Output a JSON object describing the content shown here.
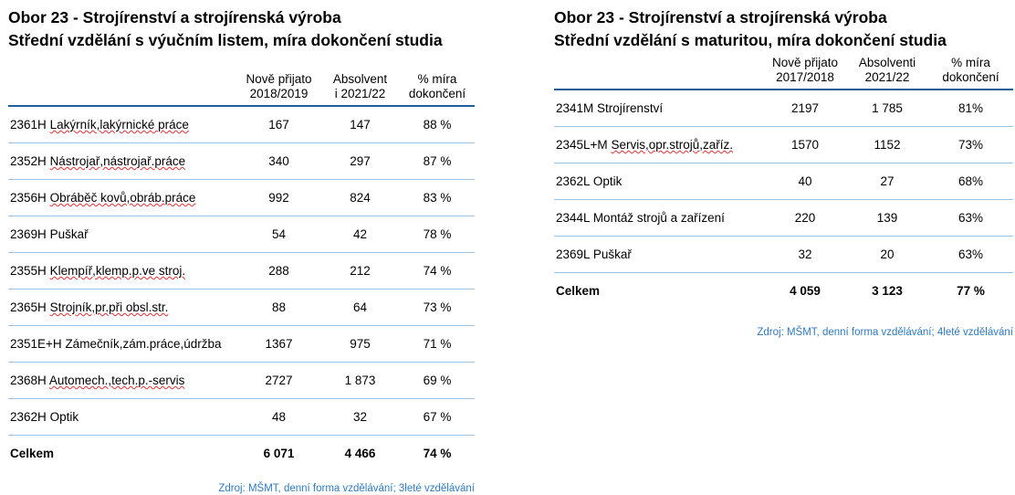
{
  "left": {
    "title1": "Obor 23 - Strojírenství a strojírenská výroba",
    "title2": "Střední vzdělání s výučním listem, míra dokončení studia",
    "headers": {
      "admitted_l1": "Nově přijato",
      "admitted_l2": "2018/2019",
      "graduates_l1": "Absolvent",
      "graduates_l2": "i 2021/22",
      "rate_l1": "% míra",
      "rate_l2": "dokončení"
    },
    "rows": [
      {
        "code": "2361H",
        "name": "Lakýrník,lakýrnické práce",
        "admitted": "167",
        "graduates": "147",
        "rate": "88 %"
      },
      {
        "code": "2352H",
        "name": "Nástrojař,nástrojař.práce",
        "admitted": "340",
        "graduates": "297",
        "rate": "87 %"
      },
      {
        "code": "2356H",
        "name": "Obráběč kovů,obráb.práce",
        "admitted": "992",
        "graduates": "824",
        "rate": "83 %"
      },
      {
        "code": "2369H",
        "name": "Puškař",
        "admitted": "54",
        "graduates": "42",
        "rate": "78 %"
      },
      {
        "code": "2355H",
        "name": "Klempíř,klemp.p.ve stroj.",
        "admitted": "288",
        "graduates": "212",
        "rate": "74 %"
      },
      {
        "code": "2365H",
        "name": "Strojník,pr.při obsl.str.",
        "admitted": "88",
        "graduates": "64",
        "rate": "73 %"
      },
      {
        "code": "2351E+H",
        "name": "Zámečník,zám.práce,údržba",
        "admitted": "1367",
        "graduates": "975",
        "rate": "71 %"
      },
      {
        "code": "2368H",
        "name": "Automech.,tech.p.-servis",
        "admitted": "2727",
        "graduates": "1 873",
        "rate": "69 %"
      },
      {
        "code": "2362H",
        "name": "Optik",
        "admitted": "48",
        "graduates": "32",
        "rate": "67 %"
      }
    ],
    "total": {
      "label": "Celkem",
      "admitted": "6 071",
      "graduates": "4 466",
      "rate": "74 %"
    },
    "source": "Zdroj: MŠMT, denní forma vzdělávání; 3leté vzdělávání"
  },
  "right": {
    "title1": "Obor 23 - Strojírenství a strojírenská výroba",
    "title2": "Střední vzdělání s maturitou, míra dokončení studia",
    "headers": {
      "admitted_l1": "Nově přijato",
      "admitted_l2": "2017/2018",
      "graduates_l1": "Absolventi",
      "graduates_l2": "2021/22",
      "rate_l1": "% míra",
      "rate_l2": "dokončení"
    },
    "rows": [
      {
        "code": "2341M",
        "name": "Strojírenství",
        "admitted": "2197",
        "graduates": "1 785",
        "rate": "81%"
      },
      {
        "code": "2345L+M",
        "name": "Servis,opr.strojů,zaříz.",
        "admitted": "1570",
        "graduates": "1152",
        "rate": "73%"
      },
      {
        "code": "2362L",
        "name": "Optik",
        "admitted": "40",
        "graduates": "27",
        "rate": "68%"
      },
      {
        "code": "2344L",
        "name": "Montáž strojů a zařízení",
        "admitted": "220",
        "graduates": "139",
        "rate": "63%"
      },
      {
        "code": "2369L",
        "name": "Puškař",
        "admitted": "32",
        "graduates": "20",
        "rate": "63%"
      }
    ],
    "total": {
      "label": "Celkem",
      "admitted": "4 059",
      "graduates": "3 123",
      "rate": "77 %"
    },
    "source": "Zdroj: MŠMT, denní forma vzdělávání; 4leté vzdělávání"
  }
}
